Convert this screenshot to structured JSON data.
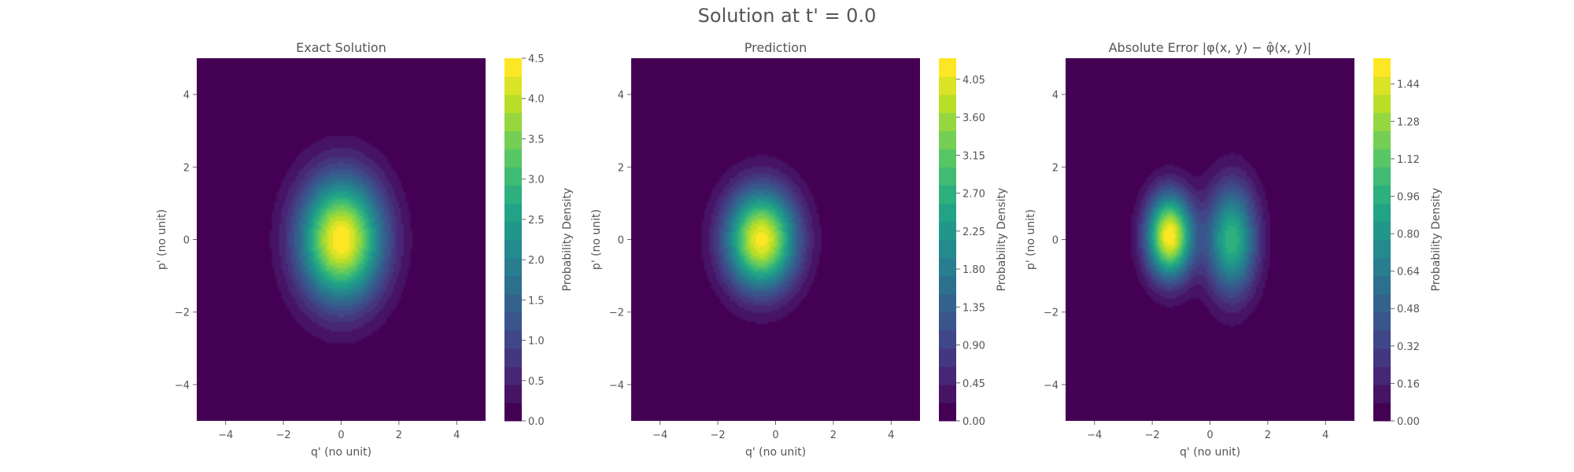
{
  "figure": {
    "suptitle": "Solution at t' = 0.0"
  },
  "chart_data": [
    {
      "type": "heatmap",
      "title": "Exact Solution",
      "xlabel": "q' (no unit)",
      "ylabel": "p' (no unit)",
      "colorbar_label": "Probability Density",
      "colormap": "viridis",
      "xlim": [
        -5,
        5
      ],
      "ylim": [
        -5,
        5
      ],
      "x_ticks": [
        -4,
        -2,
        0,
        2,
        4
      ],
      "y_ticks": [
        -4,
        -2,
        0,
        2,
        4
      ],
      "x_tick_labels": [
        "−4",
        "−2",
        "0",
        "2",
        "4"
      ],
      "y_tick_labels": [
        "−4",
        "−2",
        "0",
        "2",
        "4"
      ],
      "colorbar_ticks": [
        0.0,
        0.5,
        1.0,
        1.5,
        2.0,
        2.5,
        3.0,
        3.5,
        4.0,
        4.5
      ],
      "colorbar_tick_labels": [
        "0.0",
        "0.5",
        "1.0",
        "1.5",
        "2.0",
        "2.5",
        "3.0",
        "3.5",
        "4.0",
        "4.5"
      ],
      "color_range": [
        0,
        4.5
      ],
      "levels": 20,
      "peaks": [
        {
          "q": 0.0,
          "p": 0.0,
          "value": 4.5,
          "sigma_q": 1.0,
          "sigma_p": 1.18
        }
      ]
    },
    {
      "type": "heatmap",
      "title": "Prediction",
      "xlabel": "q' (no unit)",
      "ylabel": "p' (no unit)",
      "colorbar_label": "Probability Density",
      "colormap": "viridis",
      "xlim": [
        -5,
        5
      ],
      "ylim": [
        -5,
        5
      ],
      "x_ticks": [
        -4,
        -2,
        0,
        2,
        4
      ],
      "y_ticks": [
        -4,
        -2,
        0,
        2,
        4
      ],
      "x_tick_labels": [
        "−4",
        "−2",
        "0",
        "2",
        "4"
      ],
      "y_tick_labels": [
        "−4",
        "−2",
        "0",
        "2",
        "4"
      ],
      "colorbar_ticks": [
        0.0,
        0.45,
        0.9,
        1.35,
        1.8,
        2.25,
        2.7,
        3.15,
        3.6,
        4.05
      ],
      "colorbar_tick_labels": [
        "0.00",
        "0.45",
        "0.90",
        "1.35",
        "1.80",
        "2.25",
        "2.70",
        "3.15",
        "3.60",
        "4.05"
      ],
      "color_range": [
        0,
        4.3
      ],
      "levels": 20,
      "peaks": [
        {
          "q": -0.5,
          "p": 0.0,
          "value": 4.2,
          "sigma_q": 0.85,
          "sigma_p": 0.95
        }
      ]
    },
    {
      "type": "heatmap",
      "title": "Absolute Error |φ(x, y) − φ̂(x, y)|",
      "xlabel": "q' (no unit)",
      "ylabel": "p' (no unit)",
      "colorbar_label": "Probability Density",
      "colormap": "viridis",
      "xlim": [
        -5,
        5
      ],
      "ylim": [
        -5,
        5
      ],
      "x_ticks": [
        -4,
        -2,
        0,
        2,
        4
      ],
      "y_ticks": [
        -4,
        -2,
        0,
        2,
        4
      ],
      "x_tick_labels": [
        "−4",
        "−2",
        "0",
        "2",
        "4"
      ],
      "y_tick_labels": [
        "−4",
        "−2",
        "0",
        "2",
        "4"
      ],
      "colorbar_ticks": [
        0.0,
        0.16,
        0.32,
        0.48,
        0.64,
        0.8,
        0.96,
        1.12,
        1.28,
        1.44
      ],
      "colorbar_tick_labels": [
        "0.00",
        "0.16",
        "0.32",
        "0.48",
        "0.64",
        "0.80",
        "0.96",
        "1.12",
        "1.28",
        "1.44"
      ],
      "color_range": [
        0,
        1.55
      ],
      "levels": 20,
      "peaks": [
        {
          "q": -1.4,
          "p": 0.1,
          "value": 1.55,
          "sigma_q": 0.55,
          "sigma_p": 0.8
        },
        {
          "q": 0.75,
          "p": 0.0,
          "value": 1.0,
          "sigma_q": 0.6,
          "sigma_p": 1.05
        }
      ]
    }
  ]
}
